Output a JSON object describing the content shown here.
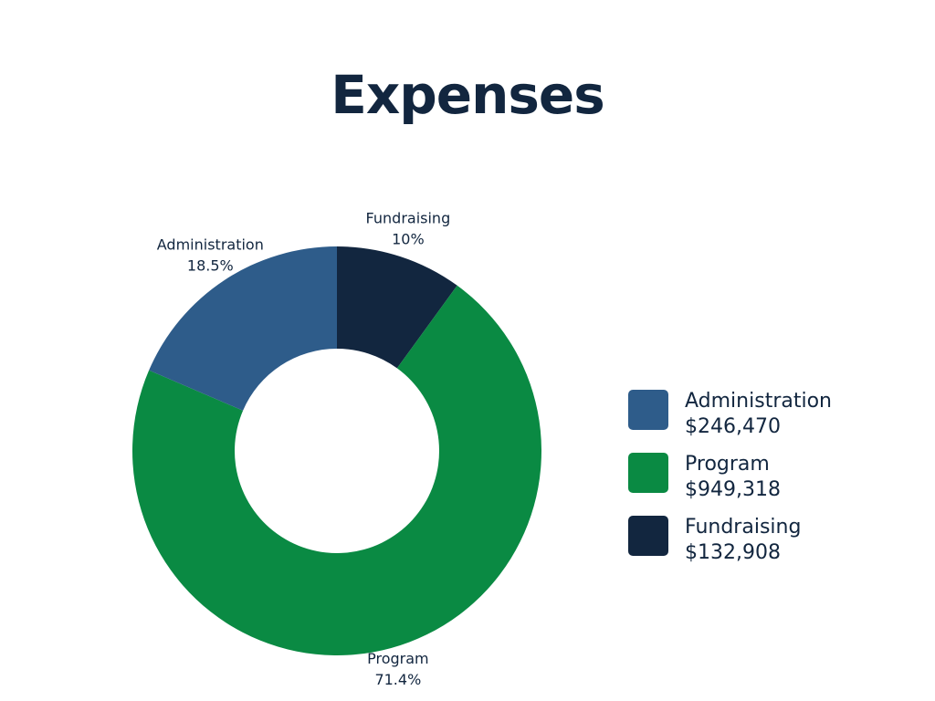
{
  "chart_data": {
    "type": "pie",
    "title": "Expenses",
    "donut": true,
    "categories": [
      "Administration",
      "Program",
      "Fundraising"
    ],
    "values": [
      246470,
      949318,
      132908
    ],
    "value_labels": [
      "$246,470",
      "$949,318",
      "$132,908"
    ],
    "percent_labels": [
      "18.5%",
      "71.4%",
      "10%"
    ],
    "colors": [
      "#2e5c8a",
      "#0a8a43",
      "#12263f"
    ],
    "legend_position": "right"
  }
}
